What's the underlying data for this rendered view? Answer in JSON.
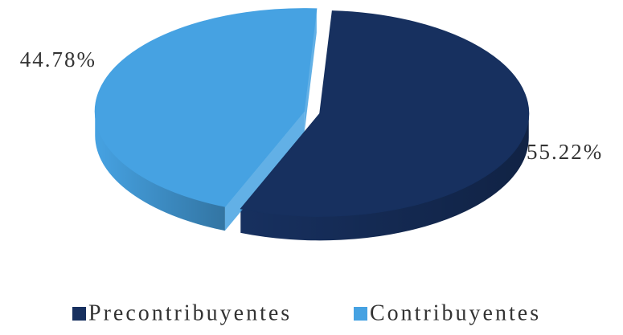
{
  "chart_data": {
    "type": "pie",
    "categories": [
      "Precontribuyentes",
      "Contribuyentes"
    ],
    "values": [
      55.22,
      44.78
    ],
    "value_labels": [
      "55.22%",
      "44.78%"
    ],
    "colors": [
      "#17305f",
      "#46a2e2"
    ],
    "legend": "bottom"
  }
}
